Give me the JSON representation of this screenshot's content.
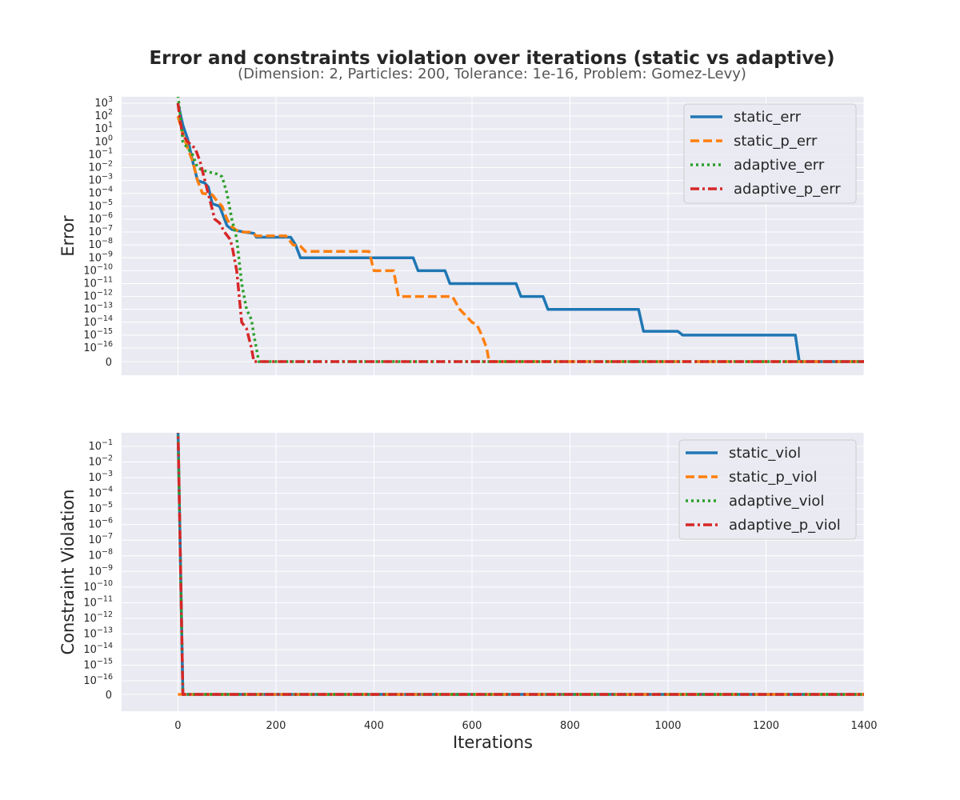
{
  "figure": {
    "title": "Error and constraints violation over iterations (static vs adaptive)",
    "subtitle": "(Dimension: 2, Particles: 200, Tolerance: 1e-16, Problem: Gomez-Levy)"
  },
  "chart_data": [
    {
      "type": "line",
      "ylabel": "Error",
      "xlabel": "",
      "xlim": [
        -115,
        1400
      ],
      "ylim_exponent": [
        -17,
        3.4
      ],
      "yscale": "symlog",
      "grid": true,
      "legend": "top-right",
      "ytick_exponents": [
        3,
        2,
        1,
        0,
        -1,
        -2,
        -3,
        -4,
        -5,
        -6,
        -7,
        -8,
        -9,
        -10,
        -11,
        -12,
        -13,
        -14,
        -15,
        -16
      ],
      "ytick_zero_label": "0",
      "series": [
        {
          "name": "static_err",
          "color": "#1f77b4",
          "dash": "solid",
          "points": [
            [
              0,
              3
            ],
            [
              10,
              1.3
            ],
            [
              20,
              0.2
            ],
            [
              30,
              -1.5
            ],
            [
              40,
              -3
            ],
            [
              55,
              -3.2
            ],
            [
              62,
              -3.5
            ],
            [
              70,
              -4.8
            ],
            [
              85,
              -5
            ],
            [
              100,
              -6.5
            ],
            [
              110,
              -6.8
            ],
            [
              135,
              -7
            ],
            [
              155,
              -7.1
            ],
            [
              160,
              -7.4
            ],
            [
              230,
              -7.4
            ],
            [
              240,
              -8
            ],
            [
              250,
              -9
            ],
            [
              480,
              -9
            ],
            [
              490,
              -10
            ],
            [
              545,
              -10
            ],
            [
              555,
              -11
            ],
            [
              690,
              -11
            ],
            [
              700,
              -12
            ],
            [
              745,
              -12
            ],
            [
              755,
              -13
            ],
            [
              940,
              -13
            ],
            [
              950,
              -14.7
            ],
            [
              1020,
              -14.7
            ],
            [
              1030,
              -15
            ],
            [
              1260,
              -15
            ],
            [
              1268,
              null
            ],
            [
              1400,
              null
            ]
          ]
        },
        {
          "name": "static_p_err",
          "color": "#ff7f0e",
          "dash": "dashed",
          "points": [
            [
              0,
              2
            ],
            [
              10,
              0.6
            ],
            [
              20,
              -0.5
            ],
            [
              30,
              -1.5
            ],
            [
              40,
              -3
            ],
            [
              50,
              -4
            ],
            [
              70,
              -4.1
            ],
            [
              80,
              -4.6
            ],
            [
              90,
              -5
            ],
            [
              100,
              -6
            ],
            [
              110,
              -6.6
            ],
            [
              125,
              -7
            ],
            [
              150,
              -7
            ],
            [
              160,
              -7.3
            ],
            [
              220,
              -7.3
            ],
            [
              235,
              -8
            ],
            [
              250,
              -8.1
            ],
            [
              260,
              -8.5
            ],
            [
              390,
              -8.5
            ],
            [
              400,
              -10
            ],
            [
              440,
              -10
            ],
            [
              450,
              -12
            ],
            [
              560,
              -12
            ],
            [
              575,
              -13
            ],
            [
              600,
              -14
            ],
            [
              610,
              -14.2
            ],
            [
              620,
              -15
            ],
            [
              630,
              -16
            ],
            [
              635,
              null
            ],
            [
              1400,
              null
            ]
          ]
        },
        {
          "name": "adaptive_err",
          "color": "#2ca02c",
          "dash": "dotted",
          "points": [
            [
              0,
              3.6
            ],
            [
              5,
              2
            ],
            [
              10,
              0
            ],
            [
              20,
              -0.5
            ],
            [
              30,
              -1
            ],
            [
              40,
              -2
            ],
            [
              50,
              -2.2
            ],
            [
              60,
              -2.3
            ],
            [
              80,
              -2.5
            ],
            [
              90,
              -2.7
            ],
            [
              100,
              -4
            ],
            [
              105,
              -5
            ],
            [
              110,
              -6
            ],
            [
              120,
              -7.5
            ],
            [
              130,
              -11
            ],
            [
              140,
              -13
            ],
            [
              150,
              -13.8
            ],
            [
              155,
              -15
            ],
            [
              160,
              -16
            ],
            [
              165,
              null
            ],
            [
              1400,
              null
            ]
          ]
        },
        {
          "name": "adaptive_p_err",
          "color": "#d62728",
          "dash": "dashdot",
          "points": [
            [
              0,
              3
            ],
            [
              5,
              1.5
            ],
            [
              10,
              0.5
            ],
            [
              20,
              0
            ],
            [
              35,
              -0.5
            ],
            [
              45,
              -1.5
            ],
            [
              55,
              -3
            ],
            [
              65,
              -4.5
            ],
            [
              75,
              -6
            ],
            [
              85,
              -6.3
            ],
            [
              95,
              -7
            ],
            [
              105,
              -7.5
            ],
            [
              110,
              -8
            ],
            [
              120,
              -10
            ],
            [
              125,
              -12
            ],
            [
              130,
              -14
            ],
            [
              140,
              -14.5
            ],
            [
              150,
              -16
            ],
            [
              155,
              null
            ],
            [
              1400,
              null
            ]
          ]
        }
      ]
    },
    {
      "type": "line",
      "ylabel": "Constraint Violation",
      "xlabel": "Iterations",
      "xlim": [
        -115,
        1400
      ],
      "ylim_exponent": [
        -17,
        0.4
      ],
      "yscale": "symlog",
      "grid": true,
      "legend": "top-right",
      "xtick_labels": [
        "0",
        "200",
        "400",
        "600",
        "800",
        "1000",
        "1200",
        "1400"
      ],
      "xtick_values": [
        0,
        200,
        400,
        600,
        800,
        1000,
        1200,
        1400
      ],
      "ytick_exponents": [
        -1,
        -2,
        -3,
        -4,
        -5,
        -6,
        -7,
        -8,
        -9,
        -10,
        -11,
        -12,
        -13,
        -14,
        -15,
        -16
      ],
      "ytick_zero_label": "0",
      "series": [
        {
          "name": "static_viol",
          "color": "#1f77b4",
          "dash": "solid",
          "points": [
            [
              0,
              0.4
            ],
            [
              10,
              null
            ],
            [
              1400,
              null
            ]
          ]
        },
        {
          "name": "static_p_viol",
          "color": "#ff7f0e",
          "dash": "dashed",
          "points": [
            [
              0,
              null
            ],
            [
              1400,
              null
            ]
          ]
        },
        {
          "name": "adaptive_viol",
          "color": "#2ca02c",
          "dash": "dotted",
          "points": [
            [
              0,
              0.4
            ],
            [
              10,
              null
            ],
            [
              1400,
              null
            ]
          ]
        },
        {
          "name": "adaptive_p_viol",
          "color": "#d62728",
          "dash": "dashdot",
          "points": [
            [
              0,
              0.4
            ],
            [
              10,
              null
            ],
            [
              1400,
              null
            ]
          ]
        }
      ]
    }
  ]
}
